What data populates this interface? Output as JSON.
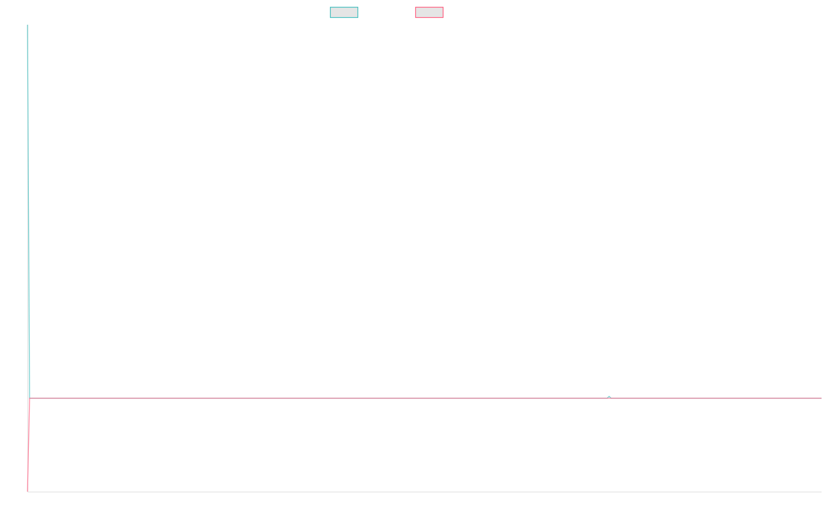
{
  "chart_data": {
    "type": "line",
    "title": "",
    "xlabel": "",
    "ylabel": "",
    "xlim": [
      0,
      385
    ],
    "ylim": [
      -0.25,
      1
    ],
    "grid": false,
    "legend": "top",
    "series": [
      {
        "color": "#4bc0c0",
        "points": [
          [
            0,
            1
          ],
          [
            1,
            0
          ],
          [
            281,
            0
          ],
          [
            282,
            0.005
          ],
          [
            283,
            0
          ],
          [
            385,
            0
          ]
        ]
      },
      {
        "color": "#ff6384",
        "points": [
          [
            0,
            -0.25
          ],
          [
            1,
            0
          ],
          [
            385,
            0
          ]
        ]
      }
    ]
  }
}
